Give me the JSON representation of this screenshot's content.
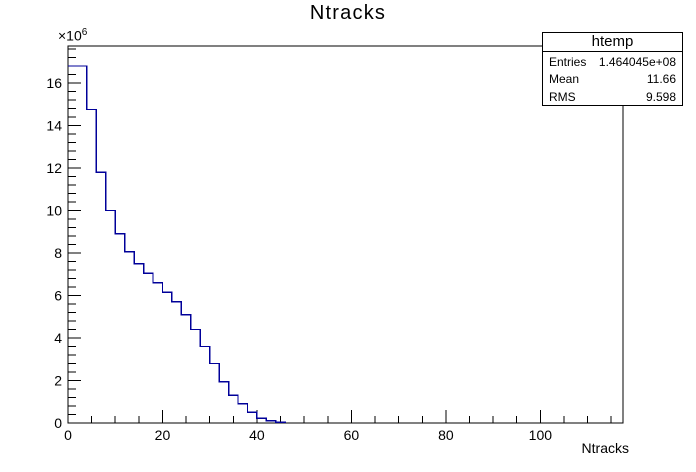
{
  "window": {
    "background": "#ffffff"
  },
  "chart_data": {
    "type": "bar",
    "subtype": "root-histogram-step-outline",
    "title": "Ntracks",
    "xlabel": "Ntracks",
    "ylabel": "",
    "y_scale_label": {
      "prefix": "×10",
      "exponent": "6"
    },
    "x_axis": {
      "min": 0,
      "max": 117.5,
      "major_ticks": [
        0,
        20,
        40,
        60,
        80,
        100
      ],
      "minor_tick_step": 5
    },
    "y_axis": {
      "min": 0,
      "max": 17.74,
      "major_ticks": [
        0,
        2,
        4,
        6,
        8,
        10,
        12,
        14,
        16
      ],
      "minor_tick_step": 0.4,
      "unit_multiplier": 1000000
    },
    "grid": "off",
    "legend_position": "none",
    "bin_start": 0,
    "bin_width": 2,
    "values_millions": [
      16.8,
      16.8,
      14.75,
      11.8,
      10.0,
      8.9,
      8.05,
      7.5,
      7.05,
      6.6,
      6.15,
      5.7,
      5.1,
      4.4,
      3.6,
      2.8,
      1.95,
      1.3,
      0.9,
      0.5,
      0.22,
      0.11,
      0.04
    ],
    "line_color": "#000099",
    "frame_color": "#000000",
    "text_color": "#000000"
  },
  "stats_box": {
    "title": "htemp",
    "rows": [
      {
        "label": "Entries",
        "value": "1.464045e+08"
      },
      {
        "label": "Mean",
        "value": "11.66"
      },
      {
        "label": "RMS",
        "value": "9.598"
      }
    ]
  }
}
